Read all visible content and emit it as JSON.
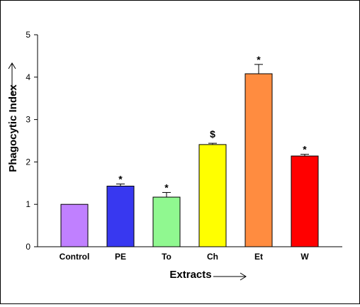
{
  "chart_data": {
    "type": "bar",
    "title": "",
    "xlabel": "Extracts",
    "ylabel": "Phagocytic Index",
    "ylim": [
      0,
      5
    ],
    "yticks": [
      0,
      1,
      2,
      3,
      4,
      5
    ],
    "categories": [
      "Control",
      "PE",
      "To",
      "Ch",
      "Et",
      "W"
    ],
    "values": [
      1.0,
      1.43,
      1.17,
      2.41,
      4.08,
      2.14
    ],
    "errors": [
      0.0,
      0.05,
      0.11,
      0.03,
      0.22,
      0.04
    ],
    "annotations": [
      "",
      "*",
      "*",
      "$",
      "*",
      "*"
    ],
    "colors": [
      "#c080ff",
      "#3838f0",
      "#90f890",
      "#ffff00",
      "#ff8c40",
      "#ff0000"
    ],
    "grid": false,
    "legend": "none"
  }
}
